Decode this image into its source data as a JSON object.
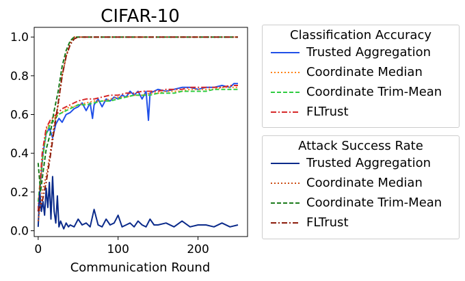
{
  "chart_data": {
    "type": "line",
    "title": "CIFAR-10",
    "xlabel": "Communication Round",
    "ylabel": "",
    "xlim": [
      -5,
      262
    ],
    "ylim": [
      -0.03,
      1.05
    ],
    "xticks": [
      0,
      100,
      200
    ],
    "yticks": [
      0.0,
      0.2,
      0.4,
      0.6,
      0.8,
      1.0
    ],
    "xtick_labels": [
      "0",
      "100",
      "200"
    ],
    "ytick_labels": [
      "0.0",
      "0.2",
      "0.4",
      "0.6",
      "0.8",
      "1.0"
    ],
    "grid": false,
    "legend_groups": [
      {
        "title": "Classification Accuracy",
        "series": [
          {
            "name": "Trusted Aggregation",
            "color": "#1f4fe8",
            "dash": "solid",
            "x": [
              0,
              3,
              6,
              10,
              14,
              18,
              22,
              26,
              30,
              35,
              40,
              45,
              50,
              55,
              60,
              65,
              68,
              70,
              75,
              80,
              85,
              90,
              95,
              100,
              105,
              110,
              115,
              120,
              125,
              130,
              135,
              138,
              140,
              145,
              150,
              160,
              170,
              180,
              190,
              200,
              210,
              220,
              230,
              240,
              245,
              250
            ],
            "y": [
              0.1,
              0.25,
              0.4,
              0.5,
              0.53,
              0.48,
              0.55,
              0.58,
              0.56,
              0.6,
              0.61,
              0.63,
              0.64,
              0.66,
              0.62,
              0.66,
              0.58,
              0.65,
              0.68,
              0.64,
              0.68,
              0.67,
              0.69,
              0.68,
              0.7,
              0.69,
              0.72,
              0.7,
              0.72,
              0.68,
              0.72,
              0.57,
              0.71,
              0.72,
              0.73,
              0.72,
              0.73,
              0.74,
              0.74,
              0.73,
              0.74,
              0.74,
              0.75,
              0.74,
              0.76,
              0.76
            ]
          },
          {
            "name": "Coordinate Median",
            "color": "#ff7f0e",
            "dash": "dotted",
            "x": [
              0,
              5,
              10,
              15,
              20,
              25,
              30,
              35,
              40,
              45,
              50,
              60,
              70,
              80,
              90,
              100,
              110,
              120,
              130,
              140,
              150,
              160,
              170,
              180,
              190,
              200,
              210,
              220,
              230,
              240,
              250
            ],
            "y": [
              0.12,
              0.35,
              0.52,
              0.56,
              0.58,
              0.6,
              0.61,
              0.63,
              0.64,
              0.64,
              0.65,
              0.66,
              0.67,
              0.67,
              0.68,
              0.69,
              0.69,
              0.7,
              0.7,
              0.71,
              0.71,
              0.72,
              0.72,
              0.72,
              0.73,
              0.73,
              0.73,
              0.73,
              0.74,
              0.74,
              0.74
            ]
          },
          {
            "name": "Coordinate Trim-Mean",
            "color": "#2ecc40",
            "dash": "dashed",
            "x": [
              0,
              5,
              10,
              15,
              20,
              25,
              30,
              35,
              40,
              45,
              50,
              60,
              70,
              80,
              90,
              100,
              110,
              120,
              130,
              140,
              150,
              160,
              170,
              180,
              190,
              200,
              210,
              220,
              230,
              240,
              250
            ],
            "y": [
              0.15,
              0.36,
              0.5,
              0.55,
              0.57,
              0.6,
              0.61,
              0.62,
              0.63,
              0.64,
              0.65,
              0.65,
              0.66,
              0.67,
              0.67,
              0.68,
              0.69,
              0.7,
              0.7,
              0.7,
              0.71,
              0.71,
              0.71,
              0.72,
              0.72,
              0.72,
              0.72,
              0.73,
              0.73,
              0.73,
              0.73
            ]
          },
          {
            "name": "FLTrust",
            "color": "#d62728",
            "dash": "dashdot",
            "x": [
              0,
              5,
              10,
              15,
              20,
              25,
              30,
              35,
              40,
              45,
              50,
              60,
              70,
              80,
              90,
              100,
              110,
              120,
              130,
              140,
              150,
              160,
              170,
              180,
              190,
              200,
              210,
              220,
              230,
              240,
              250
            ],
            "y": [
              0.1,
              0.4,
              0.53,
              0.57,
              0.59,
              0.61,
              0.63,
              0.64,
              0.65,
              0.66,
              0.67,
              0.68,
              0.68,
              0.69,
              0.7,
              0.7,
              0.71,
              0.71,
              0.72,
              0.72,
              0.72,
              0.73,
              0.73,
              0.73,
              0.74,
              0.74,
              0.74,
              0.74,
              0.74,
              0.75,
              0.75
            ]
          }
        ]
      },
      {
        "title": "Attack Success Rate",
        "series": [
          {
            "name": "Trusted Aggregation",
            "color": "#0a2a8a",
            "dash": "solid",
            "x": [
              0,
              2,
              4,
              6,
              8,
              10,
              12,
              14,
              16,
              18,
              20,
              22,
              24,
              26,
              28,
              30,
              32,
              35,
              38,
              40,
              45,
              50,
              55,
              60,
              65,
              70,
              75,
              80,
              85,
              90,
              95,
              100,
              105,
              110,
              115,
              120,
              125,
              130,
              135,
              140,
              145,
              150,
              160,
              170,
              180,
              190,
              200,
              210,
              220,
              230,
              240,
              250
            ],
            "y": [
              0.02,
              0.2,
              0.1,
              0.15,
              0.08,
              0.22,
              0.12,
              0.25,
              0.06,
              0.28,
              0.1,
              0.04,
              0.18,
              0.02,
              0.05,
              0.03,
              0.01,
              0.04,
              0.02,
              0.03,
              0.02,
              0.06,
              0.03,
              0.04,
              0.02,
              0.11,
              0.03,
              0.02,
              0.06,
              0.03,
              0.04,
              0.08,
              0.02,
              0.03,
              0.04,
              0.02,
              0.05,
              0.03,
              0.02,
              0.06,
              0.03,
              0.03,
              0.04,
              0.02,
              0.05,
              0.02,
              0.03,
              0.03,
              0.02,
              0.04,
              0.02,
              0.03
            ]
          },
          {
            "name": "Coordinate Median",
            "color": "#cc4a10",
            "dash": "dotted",
            "x": [
              0,
              5,
              10,
              15,
              20,
              25,
              30,
              35,
              40,
              45,
              50,
              60,
              80,
              100,
              150,
              200,
              250
            ],
            "y": [
              0.05,
              0.2,
              0.28,
              0.4,
              0.55,
              0.65,
              0.8,
              0.9,
              0.97,
              1.0,
              1.0,
              1.0,
              1.0,
              1.0,
              1.0,
              1.0,
              1.0
            ]
          },
          {
            "name": "Coordinate Trim-Mean",
            "color": "#1a7a1a",
            "dash": "dashed",
            "x": [
              0,
              3,
              6,
              10,
              15,
              20,
              25,
              30,
              35,
              40,
              45,
              50,
              60,
              80,
              100,
              150,
              200,
              250
            ],
            "y": [
              0.35,
              0.2,
              0.3,
              0.42,
              0.5,
              0.62,
              0.72,
              0.85,
              0.93,
              0.98,
              1.0,
              1.0,
              1.0,
              1.0,
              1.0,
              1.0,
              1.0,
              1.0
            ]
          },
          {
            "name": "FLTrust",
            "color": "#8b1a0a",
            "dash": "dashdot",
            "x": [
              0,
              5,
              10,
              15,
              20,
              25,
              30,
              35,
              40,
              45,
              50,
              60,
              80,
              100,
              150,
              200,
              250
            ],
            "y": [
              0.1,
              0.15,
              0.25,
              0.38,
              0.52,
              0.66,
              0.8,
              0.9,
              0.96,
              0.99,
              1.0,
              1.0,
              1.0,
              1.0,
              1.0,
              1.0,
              1.0
            ]
          }
        ]
      }
    ]
  }
}
